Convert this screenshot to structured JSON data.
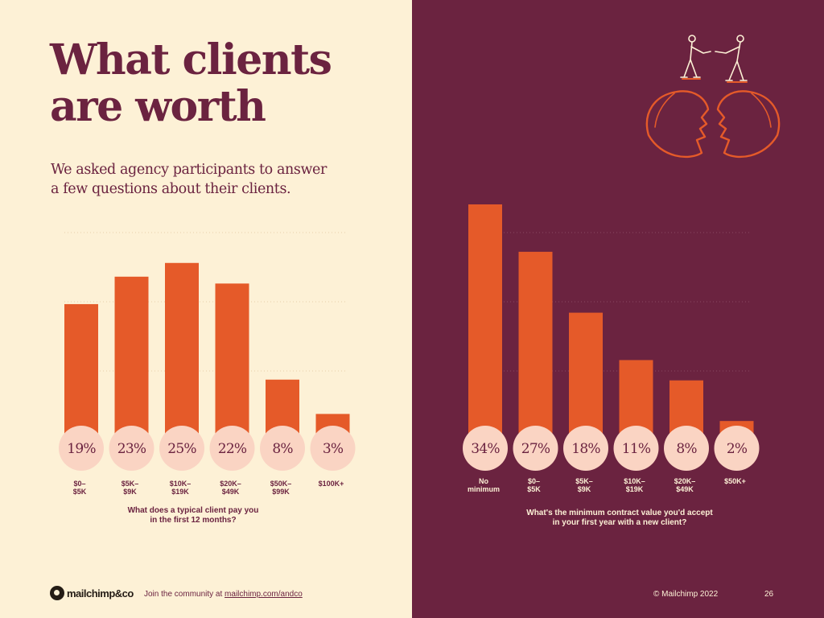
{
  "headline": {
    "line1": "What clients",
    "line2": "are worth"
  },
  "subhead": {
    "line1": "We asked agency participants to answer",
    "line2": "a few questions about their clients."
  },
  "chart_data": [
    {
      "type": "bar",
      "categories": [
        [
          "$0–",
          "$5K"
        ],
        [
          "$5K–",
          "$9K"
        ],
        [
          "$10K–",
          "$19K"
        ],
        [
          "$20K–",
          "$49K"
        ],
        [
          "$50K–",
          "$99K"
        ],
        [
          "$100K+"
        ]
      ],
      "values": [
        19,
        23,
        25,
        22,
        8,
        3
      ],
      "labels": [
        "19%",
        "23%",
        "25%",
        "22%",
        "8%",
        "3%"
      ],
      "xlabel": [
        "What does a typical client pay you",
        "in the first 12 months?"
      ],
      "ylim": [
        0,
        34
      ],
      "grid": true,
      "colors": {
        "bar": "#e55a29",
        "label_bg": "#fad4c3"
      }
    },
    {
      "type": "bar",
      "categories": [
        [
          "No",
          "minimum"
        ],
        [
          "$0–",
          "$5K"
        ],
        [
          "$5K–",
          "$9K"
        ],
        [
          "$10K–",
          "$19K"
        ],
        [
          "$20K–",
          "$49K"
        ],
        [
          "$50K+"
        ]
      ],
      "values": [
        34,
        27,
        18,
        11,
        8,
        2
      ],
      "labels": [
        "34%",
        "27%",
        "18%",
        "11%",
        "8%",
        "2%"
      ],
      "xlabel": [
        "What's the minimum contract value you'd accept",
        "in your first year with a new client?"
      ],
      "ylim": [
        0,
        34
      ],
      "grid": true,
      "colors": {
        "bar": "#e55a29",
        "label_bg": "#fad4c3"
      }
    }
  ],
  "footer": {
    "logo": "mailchimp&co",
    "community_prefix": "Join the community at ",
    "community_link": "mailchimp.com/andco",
    "copyright": "© Mailchimp 2022",
    "page": "26"
  },
  "colors": {
    "cream": "#fdf1d6",
    "plum": "#6b2340",
    "orange": "#e55a29",
    "peach": "#fad4c3"
  },
  "illustration": {
    "icon": "handshake-heads-icon"
  }
}
